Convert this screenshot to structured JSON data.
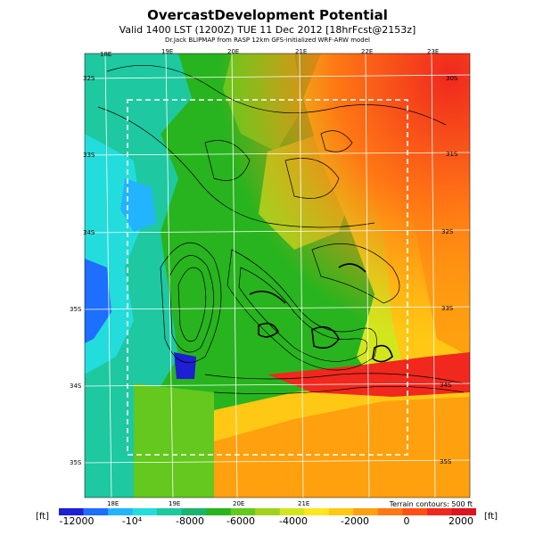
{
  "title": "OvercastDevelopment Potential",
  "subtitle": "Valid 1400 LST (1200Z) TUE 11 Dec 2012 [18hrFcst@2153z]",
  "subtitle2": "Dr.Jack BLIPMAP from RASP 12km GFS-initialized WRF-ARW model",
  "terrain_note": "Terrain contours: 500 ft",
  "units": {
    "left": "[ft]",
    "right": "[ft]"
  },
  "top_lon_labels": [
    "18E",
    "19E",
    "20E",
    "21E",
    "22E",
    "23E"
  ],
  "bottom_lon_labels": [
    "18E",
    "19E",
    "20E",
    "21E"
  ],
  "left_lat_labels": [
    "32S",
    "33S",
    "34S",
    "35S",
    "34S",
    "35S"
  ],
  "right_lat_labels": [
    "30S",
    "31S",
    "32S",
    "33S",
    "34S",
    "35S"
  ],
  "colorbar": {
    "ticks": [
      "-12000",
      "-10⁴",
      "-8000",
      "-6000",
      "-4000",
      "-2000",
      "0",
      "2000"
    ],
    "colors": [
      "#1e1ed2",
      "#1e6eff",
      "#23b4ff",
      "#23dcdc",
      "#1ec8a0",
      "#19b46e",
      "#28b41e",
      "#64c81e",
      "#a0d21e",
      "#d2e61e",
      "#ffe61e",
      "#ffc814",
      "#ffa00f",
      "#ff7814",
      "#ff5014",
      "#f0281e",
      "#dc141e"
    ]
  }
}
